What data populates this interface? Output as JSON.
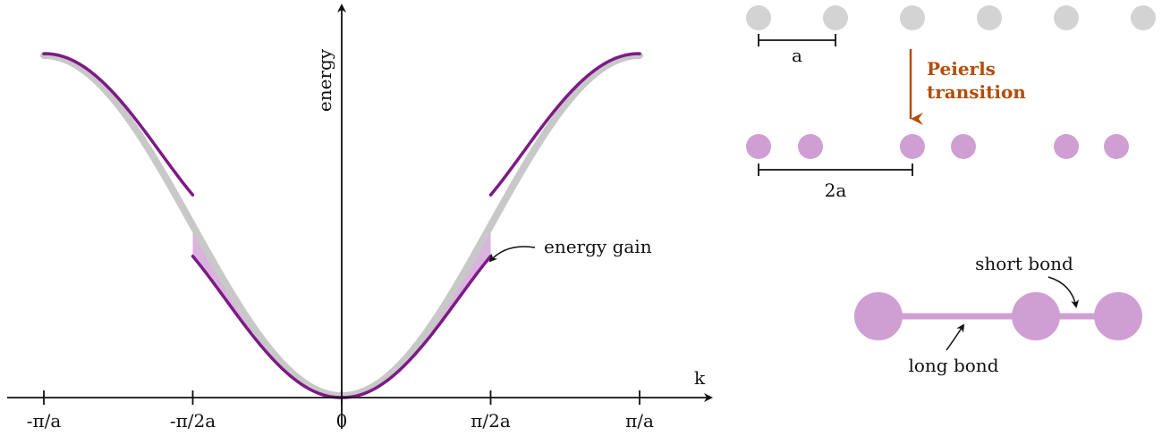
{
  "plot": {
    "x_axis_label": "k",
    "y_axis_label": "energy",
    "ticks": [
      {
        "k": -1.0,
        "label": "-π/a"
      },
      {
        "k": -0.5,
        "label": "-π/2a"
      },
      {
        "k": 0.0,
        "label": "0"
      },
      {
        "k": 0.5,
        "label": "π/2a"
      },
      {
        "k": 1.0,
        "label": "π/a"
      }
    ],
    "energy_gain_label": "energy gain"
  },
  "chain": {
    "spacing_label": "a",
    "doubled_spacing_label": "2a",
    "transition_label_line1": "Peierls",
    "transition_label_line2": "transition"
  },
  "dimer": {
    "short_bond_label": "short bond",
    "long_bond_label": "long bond"
  },
  "colors": {
    "undistorted_band": "#c8c8c8",
    "distorted_band": "#7d1a86",
    "gain_fill": "#d4a6d9",
    "atom_original": "#d3d3d3",
    "atom_dimerized": "#cf9fd4",
    "transition_arrow": "#b34d0a",
    "axis": "#111111"
  }
}
